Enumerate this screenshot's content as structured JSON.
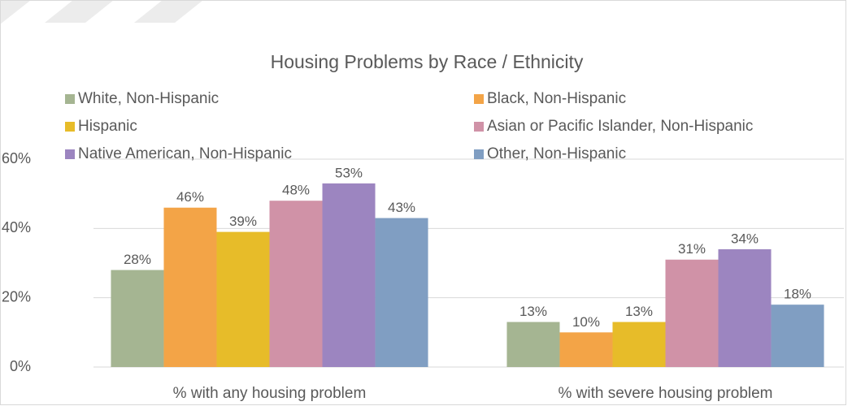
{
  "chart_data": {
    "type": "bar",
    "title": "Housing Problems by Race / Ethnicity",
    "categories": [
      "% with any housing problem",
      "% with severe housing problem"
    ],
    "series": [
      {
        "name": "White, Non-Hispanic",
        "color": "#a5b592",
        "values": [
          28,
          13
        ],
        "value_labels": [
          "28%",
          "13%"
        ]
      },
      {
        "name": "Black, Non-Hispanic",
        "color": "#f3a447",
        "values": [
          46,
          10
        ],
        "value_labels": [
          "46%",
          "10%"
        ]
      },
      {
        "name": "Hispanic",
        "color": "#e7bc29",
        "values": [
          39,
          13
        ],
        "value_labels": [
          "39%",
          "13%"
        ]
      },
      {
        "name": "Asian or Pacific Islander, Non-Hispanic",
        "color": "#d092a7",
        "values": [
          48,
          31
        ],
        "value_labels": [
          "48%",
          "31%"
        ]
      },
      {
        "name": "Native American, Non-Hispanic",
        "color": "#9c85c0",
        "values": [
          53,
          34
        ],
        "value_labels": [
          "53%",
          "34%"
        ]
      },
      {
        "name": "Other, Non-Hispanic",
        "color": "#809ec2",
        "values": [
          43,
          18
        ],
        "value_labels": [
          "43%",
          "18%"
        ]
      }
    ],
    "ylim": [
      0,
      60
    ],
    "yticks": [
      {
        "value": 0,
        "label": "0%"
      },
      {
        "value": 20,
        "label": "20%"
      },
      {
        "value": 40,
        "label": "40%"
      },
      {
        "value": 60,
        "label": "60%"
      }
    ],
    "grid": true,
    "legend": "top"
  }
}
